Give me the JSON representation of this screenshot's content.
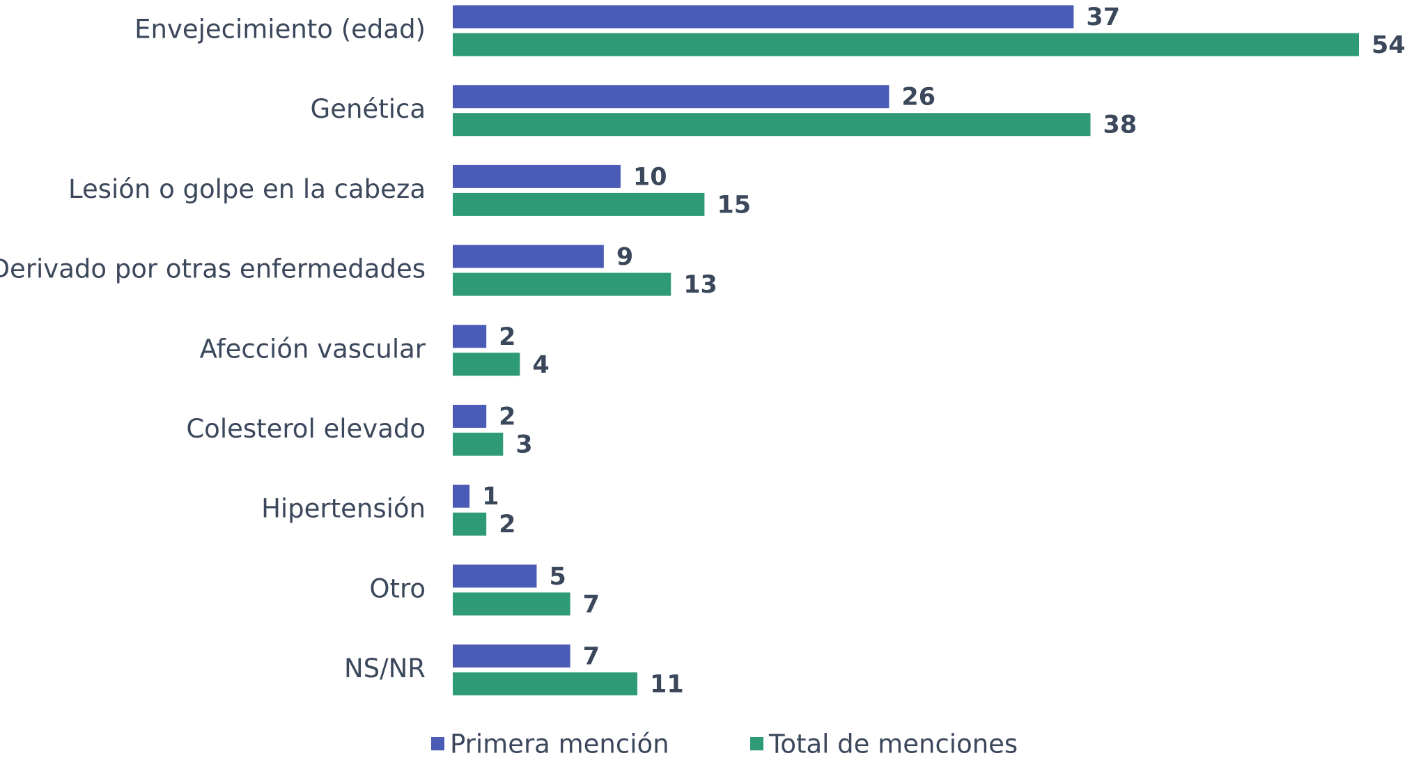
{
  "chart_data": {
    "type": "bar",
    "orientation": "horizontal",
    "categories": [
      "Envejecimiento (edad)",
      "Genética",
      "Lesión o golpe en la cabeza",
      "Derivado por otras enfermedades",
      "Afección vascular",
      "Colesterol elevado",
      "Hipertensión",
      "Otro",
      "NS/NR"
    ],
    "series": [
      {
        "name": "Primera mención",
        "color": "#4a5cb6",
        "values": [
          37,
          26,
          10,
          9,
          2,
          2,
          1,
          5,
          7
        ]
      },
      {
        "name": "Total de menciones",
        "color": "#2e9a76",
        "values": [
          54,
          38,
          15,
          13,
          4,
          3,
          2,
          7,
          11
        ]
      }
    ],
    "legend": "bottom"
  }
}
